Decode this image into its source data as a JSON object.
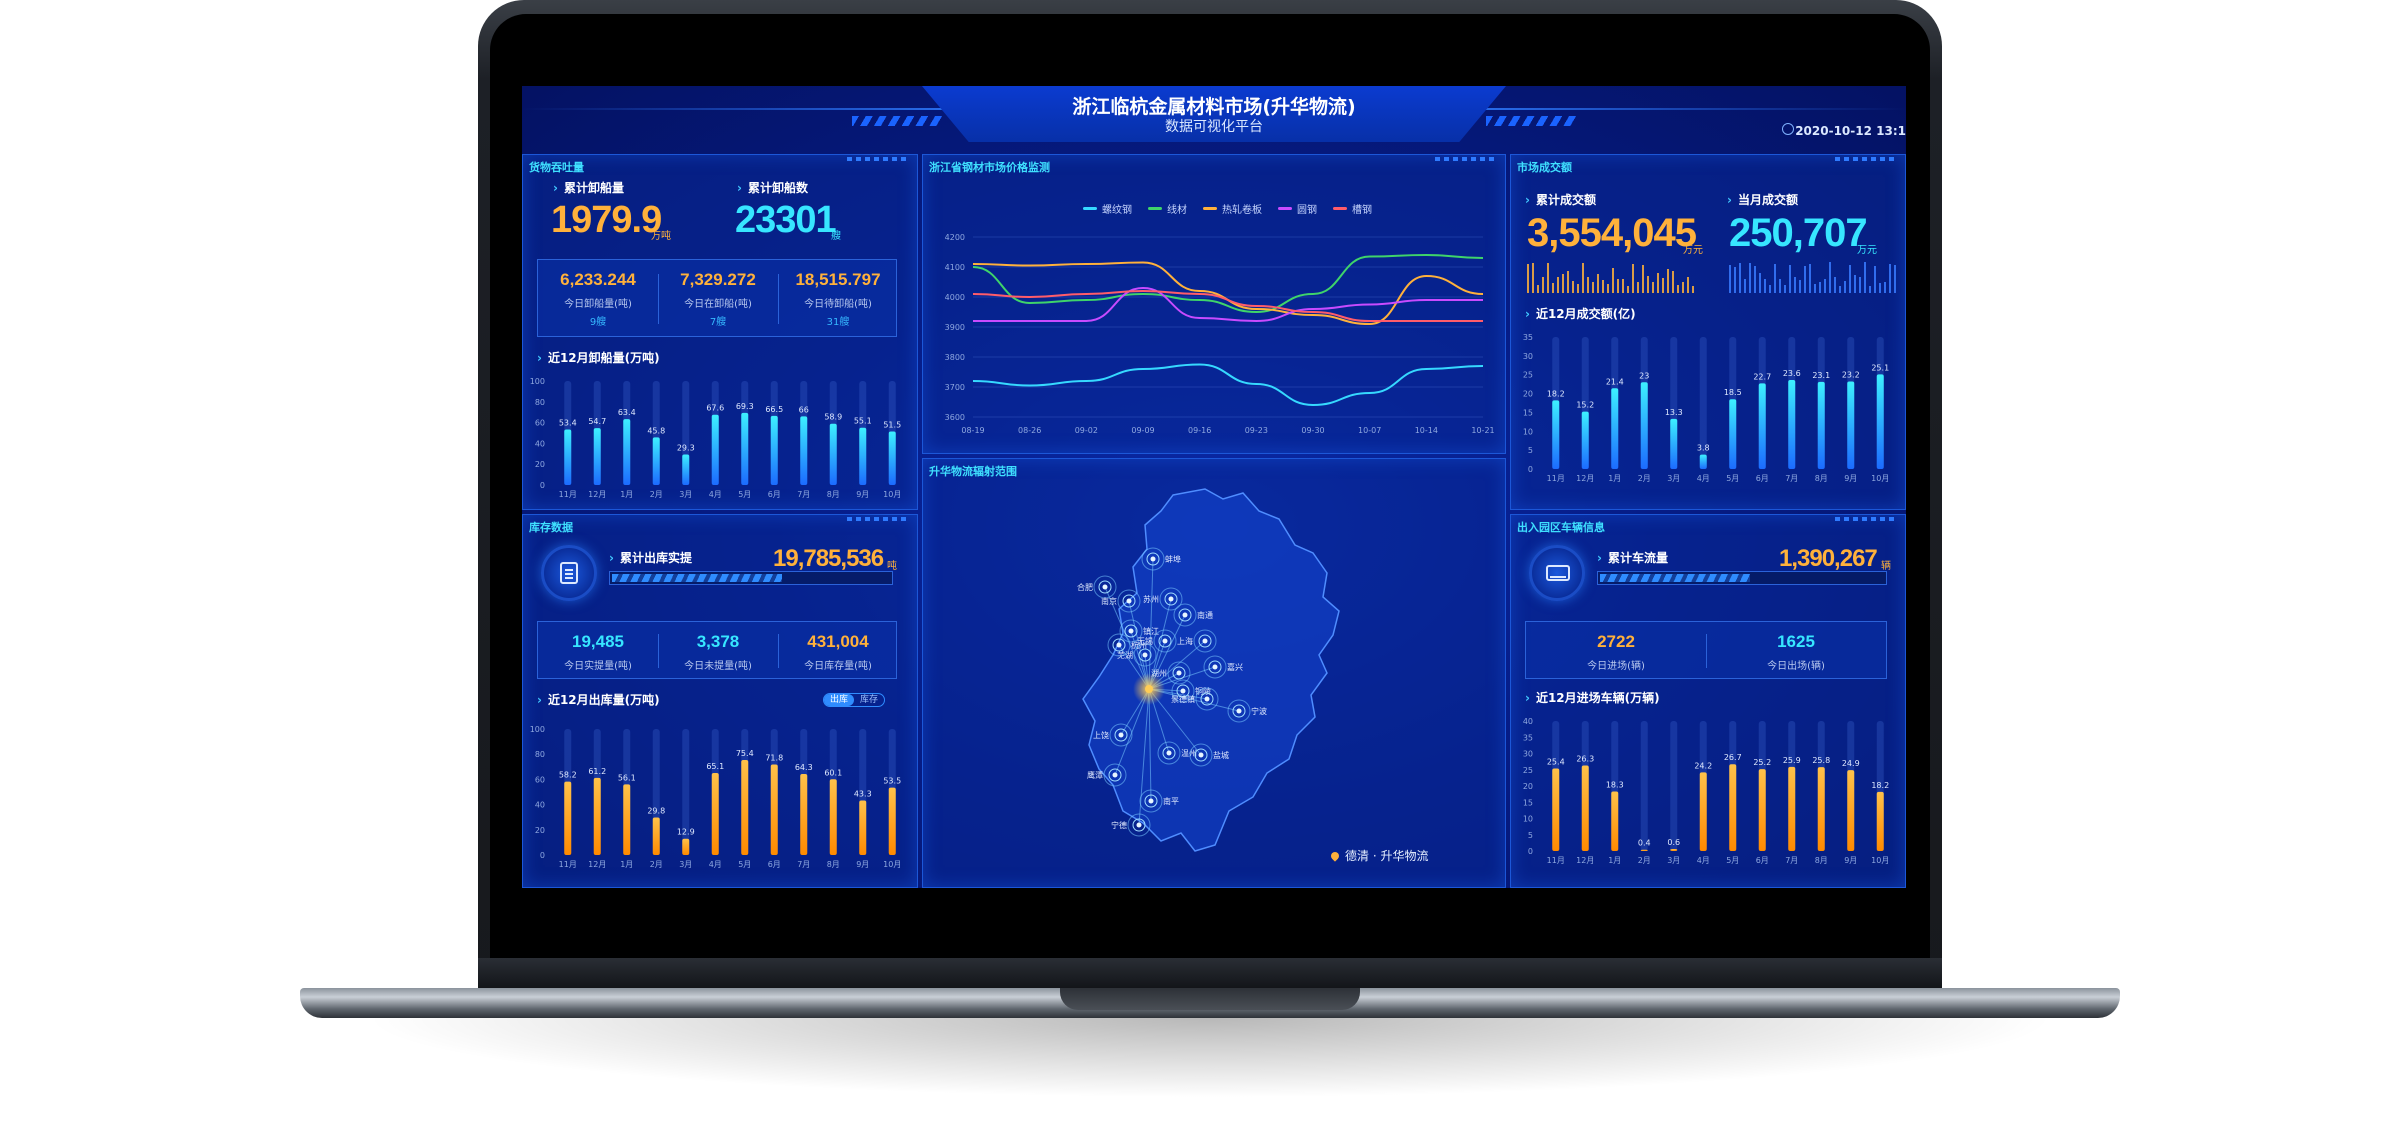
{
  "header": {
    "title": "浙江临杭金属材料市场(升华物流)",
    "subtitle": "数据可视化平台",
    "datetime": "2020-10-12 13:1"
  },
  "throughput": {
    "panel_title": "货物吞吐量",
    "unload_total": {
      "label": "累计卸船量",
      "value": "1979.9",
      "unit": "万吨"
    },
    "ship_total": {
      "label": "累计卸船数",
      "value": "23301",
      "unit": "艘"
    },
    "stats": [
      {
        "value": "6,233.244",
        "label": "今日卸船量(吨)",
        "sub": "9艘"
      },
      {
        "value": "7,329.272",
        "label": "今日在卸船(吨)",
        "sub": "7艘"
      },
      {
        "value": "18,515.797",
        "label": "今日待卸船(吨)",
        "sub": "31艘"
      }
    ],
    "chart_title": "近12月卸船量(万吨)"
  },
  "price": {
    "panel_title": "浙江省钢材市场价格监测"
  },
  "market": {
    "panel_title": "市场成交额",
    "total": {
      "label": "累计成交额",
      "value": "3,554,045",
      "unit": "万元"
    },
    "month": {
      "label": "当月成交额",
      "value": "250,707",
      "unit": "万元"
    },
    "chart_title": "近12月成交额(亿)"
  },
  "inventory": {
    "panel_title": "库存数据",
    "outbound": {
      "label": "累计出库实提",
      "value": "19,785,536",
      "unit": "吨"
    },
    "stats": [
      {
        "value": "19,485",
        "label": "今日实提量(吨)"
      },
      {
        "value": "3,378",
        "label": "今日未提量(吨)"
      },
      {
        "value": "431,004",
        "label": "今日库存量(吨)"
      }
    ],
    "chart_title": "近12月出库量(万吨)",
    "toggle_a": "出库",
    "toggle_b": "库存"
  },
  "map": {
    "panel_title": "升华物流辐射范围",
    "footer": "德清 · 升华物流",
    "cities": [
      "合肥",
      "蚌埠",
      "南京",
      "镇江",
      "苏州",
      "南通",
      "上海",
      "嘉兴",
      "湖州",
      "铜陵",
      "芜湖",
      "杭州",
      "景德镇",
      "宁波",
      "上饶",
      "温州",
      "鹰潭",
      "南平",
      "宁德",
      "盐城",
      "无锡"
    ]
  },
  "vehicles": {
    "panel_title": "出入园区车辆信息",
    "flow": {
      "label": "累计车流量",
      "value": "1,390,267",
      "unit": "辆"
    },
    "stats": [
      {
        "value": "2722",
        "label": "今日进场(辆)"
      },
      {
        "value": "1625",
        "label": "今日出场(辆)"
      }
    ],
    "chart_title": "近12月进场车辆(万辆)"
  },
  "colors": {
    "orange": "#ffb13b",
    "cyan": "#37e6ff",
    "accent": "#2f8cff"
  },
  "chart_data": [
    {
      "id": "unload",
      "type": "bar",
      "title": "近12月卸船量(万吨)",
      "categories": [
        "11月",
        "12月",
        "1月",
        "2月",
        "3月",
        "4月",
        "5月",
        "6月",
        "7月",
        "8月",
        "9月",
        "10月"
      ],
      "values": [
        53.4,
        54.7,
        63.4,
        45.8,
        29.3,
        67.6,
        69.3,
        66.5,
        66.0,
        58.9,
        55.1,
        51.5
      ],
      "ylim": [
        0,
        100
      ],
      "yticks": [
        0,
        20,
        40,
        60,
        80,
        100
      ]
    },
    {
      "id": "price",
      "type": "line",
      "title": "浙江省钢材市场价格监测",
      "x": [
        "08-19",
        "08-26",
        "09-02",
        "09-09",
        "09-16",
        "09-23",
        "09-30",
        "10-07",
        "10-14",
        "10-21"
      ],
      "ylim": [
        3600,
        4200
      ],
      "yticks": [
        3600,
        3700,
        3800,
        3900,
        4000,
        4100,
        4200
      ],
      "series": [
        {
          "name": "螺纹钢",
          "color": "#36d9ff",
          "values": [
            3720,
            3705,
            3720,
            3760,
            3775,
            3710,
            3640,
            3680,
            3760,
            3770
          ]
        },
        {
          "name": "线材",
          "color": "#3fd46a",
          "values": [
            4100,
            3980,
            3990,
            4010,
            3990,
            3950,
            4010,
            4135,
            4140,
            4130
          ]
        },
        {
          "name": "热轧卷板",
          "color": "#ffb13b",
          "values": [
            4110,
            4105,
            4110,
            4115,
            4020,
            3960,
            3940,
            3910,
            4070,
            4010
          ]
        },
        {
          "name": "圆钢",
          "color": "#c84bff",
          "values": [
            3920,
            3920,
            3920,
            4030,
            3930,
            3920,
            3960,
            3975,
            3990,
            3990
          ]
        },
        {
          "name": "槽钢",
          "color": "#ff5c6a",
          "values": [
            4010,
            4000,
            4010,
            4020,
            4010,
            3970,
            3950,
            3920,
            3920,
            3920
          ]
        }
      ]
    },
    {
      "id": "market",
      "type": "bar",
      "title": "近12月成交额(亿)",
      "categories": [
        "11月",
        "12月",
        "1月",
        "2月",
        "3月",
        "4月",
        "5月",
        "6月",
        "7月",
        "8月",
        "9月",
        "10月"
      ],
      "values": [
        18.2,
        15.2,
        21.4,
        23.0,
        13.3,
        3.8,
        18.5,
        22.7,
        23.6,
        23.1,
        23.2,
        25.1
      ],
      "ylim": [
        0,
        35
      ],
      "yticks": [
        0,
        5,
        10,
        15,
        20,
        25,
        30,
        35
      ]
    },
    {
      "id": "outbound",
      "type": "bar",
      "title": "近12月出库量(万吨)",
      "categories": [
        "11月",
        "12月",
        "1月",
        "2月",
        "3月",
        "4月",
        "5月",
        "6月",
        "7月",
        "8月",
        "9月",
        "10月"
      ],
      "values": [
        58.2,
        61.2,
        56.1,
        29.8,
        12.9,
        65.1,
        75.4,
        71.8,
        64.3,
        60.1,
        43.3,
        53.5
      ],
      "ylim": [
        0,
        100
      ],
      "yticks": [
        0,
        20,
        40,
        60,
        80,
        100
      ]
    },
    {
      "id": "vehicles",
      "type": "bar",
      "title": "近12月进场车辆(万辆)",
      "categories": [
        "11月",
        "12月",
        "1月",
        "2月",
        "3月",
        "4月",
        "5月",
        "6月",
        "7月",
        "8月",
        "9月",
        "10月"
      ],
      "values": [
        25.4,
        26.3,
        18.3,
        0.4,
        0.6,
        24.2,
        26.7,
        25.2,
        25.9,
        25.8,
        24.9,
        18.2
      ],
      "ylim": [
        0,
        40
      ],
      "yticks": [
        0,
        5,
        10,
        15,
        20,
        25,
        30,
        35,
        40
      ]
    }
  ]
}
